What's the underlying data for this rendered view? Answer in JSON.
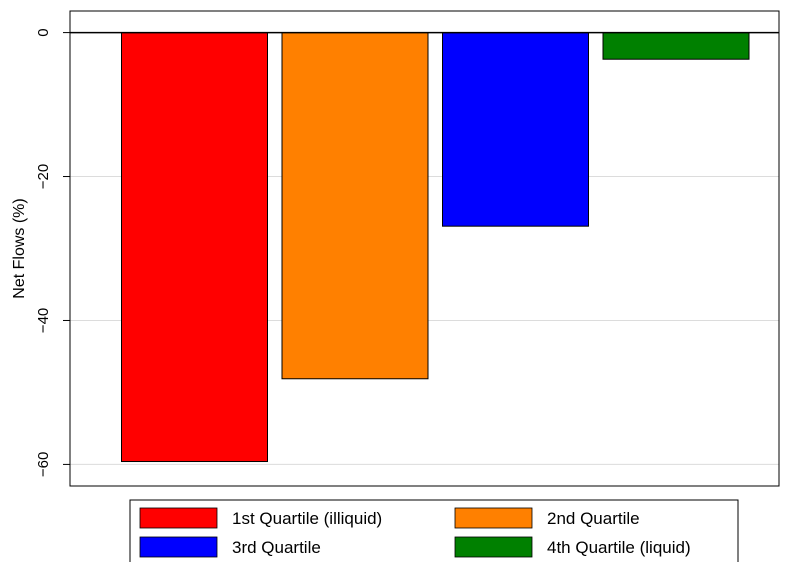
{
  "chart_data": {
    "type": "bar",
    "title": "",
    "xlabel": "",
    "ylabel": "Net Flows (%)",
    "ylim": [
      -63,
      3
    ],
    "yticks": [
      0,
      -20,
      -40,
      -60
    ],
    "grid": true,
    "legend_position": "bottom",
    "categories": [
      "1st Quartile (illiquid)",
      "2nd Quartile",
      "3rd Quartile",
      "4th Quartile (liquid)"
    ],
    "values": [
      -59.6,
      -48.1,
      -26.9,
      -3.7
    ],
    "colors": [
      "#ff0000",
      "#ff8000",
      "#0000ff",
      "#008000"
    ],
    "legend": [
      {
        "label": "1st Quartile (illiquid)",
        "color": "#ff0000"
      },
      {
        "label": "2nd Quartile",
        "color": "#ff8000"
      },
      {
        "label": "3rd Quartile",
        "color": "#0000ff"
      },
      {
        "label": "4th Quartile (liquid)",
        "color": "#008000"
      }
    ]
  }
}
